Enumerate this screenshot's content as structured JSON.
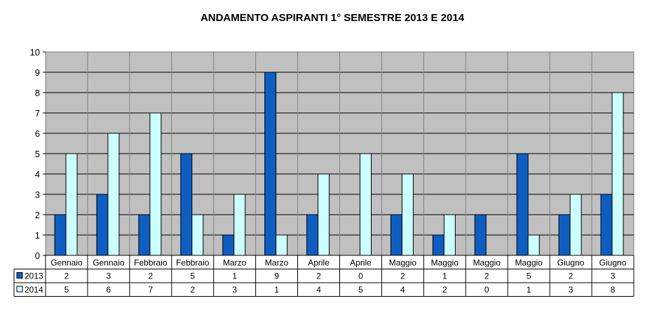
{
  "chart_data": {
    "type": "bar",
    "title": "ANDAMENTO ASPIRANTI 1°  SEMESTRE 2013  E  2014",
    "xlabel": "",
    "ylabel": "",
    "ylim": [
      0,
      10
    ],
    "yticks": [
      "0",
      "1",
      "2",
      "3",
      "4",
      "5",
      "6",
      "7",
      "8",
      "9",
      "10"
    ],
    "grid": true,
    "legend": "data-table",
    "categories": [
      "Gennaio",
      "Gennaio",
      "Febbraio",
      "Febbraio",
      "Marzo",
      "Marzo",
      "Aprile",
      "Aprile",
      "Maggio",
      "Maggio",
      "Maggio",
      "Maggio",
      "Giugno",
      "Giugno"
    ],
    "series": [
      {
        "name": "2013",
        "color": "#0e5ec2",
        "values": [
          2,
          3,
          2,
          5,
          1,
          9,
          2,
          0,
          2,
          1,
          2,
          5,
          2,
          3
        ]
      },
      {
        "name": "2014",
        "color": "#ccffff",
        "values": [
          5,
          6,
          7,
          2,
          3,
          1,
          4,
          5,
          4,
          2,
          0,
          1,
          3,
          8
        ]
      }
    ],
    "plot_background": "#c0c0c0"
  }
}
